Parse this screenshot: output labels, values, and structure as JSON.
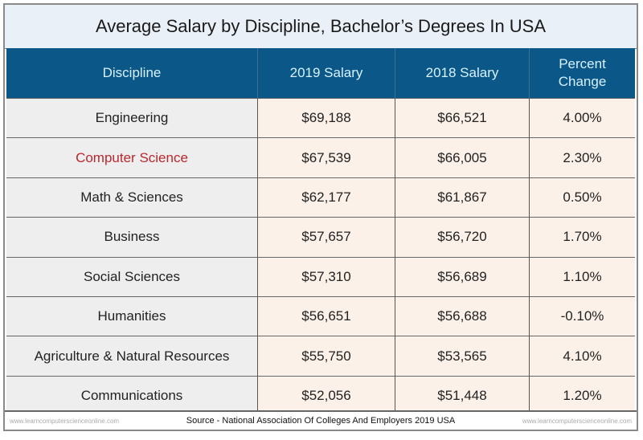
{
  "title": "Average Salary by Discipline, Bachelor’s Degrees In USA",
  "colors": {
    "header_bg": "#0b5888",
    "header_text": "#d7f1ff",
    "highlight_text": "#b8282e",
    "discipline_bg": "#eeeeee",
    "value_bg": "#fcf1e8"
  },
  "chart_data": {
    "type": "table",
    "title": "Average Salary by Discipline, Bachelor’s Degrees In USA",
    "columns": [
      "Discipline",
      "2019 Salary",
      "2018 Salary",
      "Percent Change"
    ],
    "rows": [
      [
        "Engineering",
        "$69,188",
        "$66,521",
        "4.00%"
      ],
      [
        "Computer Science",
        "$67,539",
        "$66,005",
        "2.30%"
      ],
      [
        "Math & Sciences",
        "$62,177",
        "$61,867",
        "0.50%"
      ],
      [
        "Business",
        "$57,657",
        "$56,720",
        "1.70%"
      ],
      [
        "Social Sciences",
        "$57,310",
        "$56,689",
        "1.10%"
      ],
      [
        "Humanities",
        "$56,651",
        "$56,688",
        "-0.10%"
      ],
      [
        "Agriculture & Natural Resources",
        "$55,750",
        "$53,565",
        "4.10%"
      ],
      [
        "Communications",
        "$52,056",
        "$51,448",
        "1.20%"
      ]
    ],
    "highlighted_row": "Computer Science"
  },
  "footer": {
    "watermark": "www.learncomputerscienceonline.com",
    "source": "Source - National Association Of Colleges And Employers 2019  USA"
  }
}
